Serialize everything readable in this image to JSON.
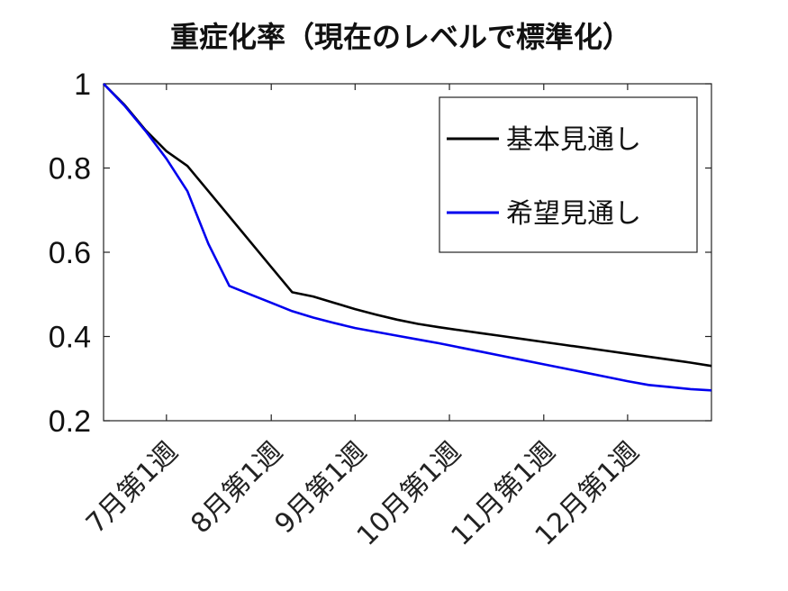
{
  "chart_data": {
    "type": "line",
    "title": "重症化率（現在のレベルで標準化）",
    "xlabel": "",
    "ylabel": "",
    "xlim": [
      0,
      29
    ],
    "ylim": [
      0.2,
      1.0
    ],
    "yticks": [
      0.2,
      0.4,
      0.6,
      0.8,
      1.0
    ],
    "ytick_labels": [
      "0.2",
      "0.4",
      "0.6",
      "0.8",
      "1"
    ],
    "xticks": [
      {
        "label": "7月第1週",
        "x": 3
      },
      {
        "label": "8月第1週",
        "x": 8
      },
      {
        "label": "9月第1週",
        "x": 12
      },
      {
        "label": "10月第1週",
        "x": 16.5
      },
      {
        "label": "11月第1週",
        "x": 21
      },
      {
        "label": "12月第1週",
        "x": 25
      }
    ],
    "grid": false,
    "legend_position": "top-right",
    "series": [
      {
        "name": "基本見通し",
        "color": "#000000",
        "x": [
          0,
          1,
          2,
          3,
          4,
          5,
          6,
          7,
          8,
          9,
          10,
          11,
          12,
          13,
          14,
          15,
          16,
          17,
          18,
          19,
          20,
          21,
          22,
          23,
          24,
          25,
          26,
          27,
          28,
          29
        ],
        "values": [
          1.0,
          0.95,
          0.89,
          0.84,
          0.805,
          0.745,
          0.685,
          0.625,
          0.565,
          0.505,
          0.495,
          0.48,
          0.465,
          0.452,
          0.44,
          0.43,
          0.422,
          0.415,
          0.408,
          0.401,
          0.394,
          0.387,
          0.38,
          0.373,
          0.366,
          0.359,
          0.352,
          0.345,
          0.338,
          0.33
        ]
      },
      {
        "name": "希望見通し",
        "color": "#0000ee",
        "x": [
          0,
          1,
          2,
          3,
          4,
          5,
          6,
          7,
          8,
          9,
          10,
          11,
          12,
          13,
          14,
          15,
          16,
          17,
          18,
          19,
          20,
          21,
          22,
          23,
          24,
          25,
          26,
          27,
          28,
          29
        ],
        "values": [
          1.0,
          0.948,
          0.888,
          0.822,
          0.745,
          0.62,
          0.52,
          0.5,
          0.48,
          0.46,
          0.445,
          0.432,
          0.42,
          0.411,
          0.402,
          0.393,
          0.384,
          0.374,
          0.364,
          0.354,
          0.344,
          0.334,
          0.324,
          0.314,
          0.304,
          0.294,
          0.285,
          0.28,
          0.275,
          0.272
        ]
      }
    ]
  }
}
